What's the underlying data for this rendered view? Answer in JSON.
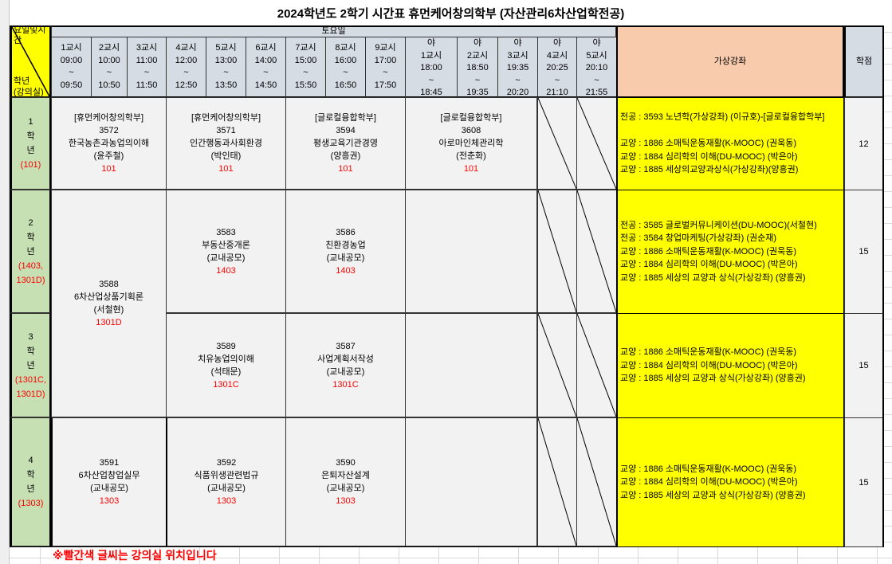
{
  "title": "2024학년도 2학기 시간표 휴먼케어창의학부 (자산관리6차산업학전공)",
  "header": {
    "corner_top": "요일및시간",
    "corner_bottom_1": "학년",
    "corner_bottom_2": "(강의실)",
    "day": "토요일",
    "periods": [
      {
        "label": "1교시",
        "start": "09:00",
        "sep": "~",
        "end": "09:50"
      },
      {
        "label": "2교시",
        "start": "10:00",
        "sep": "~",
        "end": "10:50"
      },
      {
        "label": "3교시",
        "start": "11:00",
        "sep": "~",
        "end": "11:50"
      },
      {
        "label": "4교시",
        "start": "12:00",
        "sep": "~",
        "end": "12:50"
      },
      {
        "label": "5교시",
        "start": "13:00",
        "sep": "~",
        "end": "13:50"
      },
      {
        "label": "6교시",
        "start": "14:00",
        "sep": "~",
        "end": "14:50"
      },
      {
        "label": "7교시",
        "start": "15:00",
        "sep": "~",
        "end": "15:50"
      },
      {
        "label": "8교시",
        "start": "16:00",
        "sep": "~",
        "end": "16:50"
      },
      {
        "label": "9교시",
        "start": "17:00",
        "sep": "~",
        "end": "17:50"
      }
    ],
    "night_periods": [
      {
        "prefix": "야",
        "label": "1교시",
        "start": "18:00",
        "sep": "~",
        "end": "18:45"
      },
      {
        "prefix": "야",
        "label": "2교시",
        "start": "18:50",
        "sep": "~",
        "end": "19:35"
      },
      {
        "prefix": "야",
        "label": "3교시",
        "start": "19:35",
        "sep": "~",
        "end": "20:20"
      },
      {
        "prefix": "야",
        "label": "4교시",
        "start": "20:25",
        "sep": "~",
        "end": "21:10"
      },
      {
        "prefix": "야",
        "label": "5교시",
        "start": "20:10",
        "sep": "~",
        "end": "21:55"
      }
    ],
    "virtual": "가상강좌",
    "credits": "학점"
  },
  "grades": [
    {
      "num": "1",
      "hak": "학",
      "nyeon": "년",
      "room": "(101)",
      "room2": ""
    },
    {
      "num": "2",
      "hak": "학",
      "nyeon": "년",
      "room": "(1403,",
      "room2": "1301D)"
    },
    {
      "num": "3",
      "hak": "학",
      "nyeon": "년",
      "room": "(1301C,",
      "room2": "1301D)"
    },
    {
      "num": "4",
      "hak": "학",
      "nyeon": "년",
      "room": "(1303)",
      "room2": ""
    }
  ],
  "courses": {
    "c3572": {
      "dept": "[휴먼케어창의학부]",
      "code": "3572",
      "name": "한국농촌과농업의이해",
      "prof": "(윤주철)",
      "room": "101"
    },
    "c3571": {
      "dept": "[휴먼케어창의학부]",
      "code": "3571",
      "name": "인간행동과사회환경",
      "prof": "(박인태)",
      "room": "101"
    },
    "c3594": {
      "dept": "[글로컬융합학부]",
      "code": "3594",
      "name": "평생교육기관경영",
      "prof": "(양흥권)",
      "room": "101"
    },
    "c3608": {
      "dept": "[글로컬융합학부]",
      "code": "3608",
      "name": "아로마인체관리학",
      "prof": "(전춘화)",
      "room": "101"
    },
    "c3588": {
      "code": "3588",
      "name": "6차산업상품기획론",
      "prof": "(서철현)",
      "room": "1301D"
    },
    "c3583": {
      "code": "3583",
      "name": "부동산중개론",
      "prof": "(교내공모)",
      "room": "1403"
    },
    "c3586": {
      "code": "3586",
      "name": "친환경농업",
      "prof": "(교내공모)",
      "room": "1403"
    },
    "c3589": {
      "code": "3589",
      "name": "치유농업의이해",
      "prof": "(석태문)",
      "room": "1301C"
    },
    "c3587": {
      "code": "3587",
      "name": "사업계획서작성",
      "prof": "(교내공모)",
      "room": "1301C"
    },
    "c3591": {
      "code": "3591",
      "name": "6차산업창업실무",
      "prof": "(교내공모)",
      "room": "1303"
    },
    "c3592": {
      "code": "3592",
      "name": "식품위생관련법규",
      "prof": "(교내공모)",
      "room": "1303"
    },
    "c3590": {
      "code": "3590",
      "name": "은퇴자산설계",
      "prof": "(교내공모)",
      "room": "1303"
    }
  },
  "virtual_courses": [
    {
      "lines": [
        "전공 : 3593 노년학(가상강좌) (이규호)-[글로컬융합학부]",
        "",
        "교양 : 1886 소매틱운동재활(K-MOOC) (권욱동)",
        "교양 : 1884 심리학의 이해(DU-MOOC) (박은아)",
        "교양 : 1885 세상의교양과상식(가상강좌)(양흥권)"
      ],
      "credits": "12"
    },
    {
      "lines": [
        "전공 : 3585 글로벌커뮤니케이션(DU-MOOC)(서철현)",
        "전공 : 3584 창업마케팅(가상강좌) (권순재)",
        "교양 : 1886 소매틱운동재활(K-MOOC) (권욱동)",
        "교양 : 1884 심리학의 이해(DU-MOOC) (박은아)",
        "교양 : 1885 세상의 교양과 상식(가상강좌) (양흥권)"
      ],
      "credits": "15"
    },
    {
      "lines": [
        "교양 : 1886 소매틱운동재활(K-MOOC) (권욱동)",
        "교양 : 1884 심리학의 이해(DU-MOOC) (박은아)",
        "교양 : 1885 세상의 교양과 상식(가상강좌) (양흥권)"
      ],
      "credits": "15"
    },
    {
      "lines": [
        "교양 : 1886 소매틱운동재활(K-MOOC) (권욱동)",
        "교양 : 1884 심리학의 이해(DU-MOOC) (박은아)",
        "교양 : 1885 세상의 교양과 상식(가상강좌) (양흥권)"
      ],
      "credits": "15"
    }
  ],
  "footnote": "※빨간색 글씨는 강의실 위치입니다",
  "colors": {
    "header": "#d6dce4",
    "grade": "#c6e0b4",
    "virtual": "#ffff00",
    "virtual_header": "#f8cbad",
    "corner": "#ffff00",
    "room_text": "#ff0000"
  }
}
